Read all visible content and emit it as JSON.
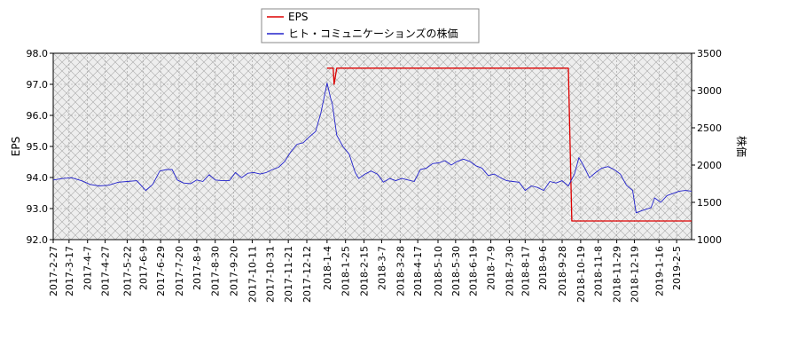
{
  "chart_data": {
    "type": "line",
    "title": "",
    "xlabel": "",
    "ylabel_left": "EPS",
    "ylabel_right": "株価",
    "ylim_left": [
      92.0,
      98.0
    ],
    "ylim_right": [
      1000,
      3500
    ],
    "yticks_left": [
      "92.0",
      "93.0",
      "94.0",
      "95.0",
      "96.0",
      "97.0",
      "98.0"
    ],
    "yticks_right": [
      "1000",
      "1500",
      "2000",
      "2500",
      "3000",
      "3500"
    ],
    "x_start": "2017-02-27",
    "x_end": "2019-02-22",
    "xticks": [
      "2017-2-27",
      "2017-3-17",
      "2017-4-7",
      "2017-4-27",
      "2017-5-22",
      "2017-6-9",
      "2017-6-29",
      "2017-7-20",
      "2017-8-9",
      "2017-8-30",
      "2017-9-20",
      "2017-10-11",
      "2017-10-31",
      "2017-11-21",
      "2017-12-12",
      "2018-1-4",
      "2018-1-25",
      "2018-2-15",
      "2018-3-7",
      "2018-3-28",
      "2018-4-17",
      "2018-5-10",
      "2018-5-30",
      "2018-6-19",
      "2018-7-9",
      "2018-7-30",
      "2018-8-17",
      "2018-9-6",
      "2018-9-28",
      "2018-10-19",
      "2018-11-8",
      "2018-11-29",
      "2018-12-19",
      "2019-1-16",
      "2019-2-5"
    ],
    "grid": true,
    "legend": "top-center",
    "series": [
      {
        "name": "EPS",
        "axis": "left",
        "color": "#dd0000",
        "points": [
          [
            "2018-01-04",
            97.52
          ],
          [
            "2018-01-11",
            97.52
          ],
          [
            "2018-01-12",
            97.0
          ],
          [
            "2018-01-15",
            97.52
          ],
          [
            "2018-10-05",
            97.52
          ],
          [
            "2018-10-09",
            92.6
          ],
          [
            "2019-02-22",
            92.6
          ]
        ]
      },
      {
        "name": "ヒト・コミュニケーションズの株価",
        "axis": "right",
        "color": "#2222cc",
        "points": [
          [
            "2017-02-27",
            1800
          ],
          [
            "2017-03-10",
            1820
          ],
          [
            "2017-03-20",
            1830
          ],
          [
            "2017-03-31",
            1790
          ],
          [
            "2017-04-10",
            1740
          ],
          [
            "2017-04-20",
            1720
          ],
          [
            "2017-05-01",
            1730
          ],
          [
            "2017-05-12",
            1770
          ],
          [
            "2017-05-22",
            1780
          ],
          [
            "2017-06-02",
            1790
          ],
          [
            "2017-06-12",
            1660
          ],
          [
            "2017-06-20",
            1740
          ],
          [
            "2017-06-28",
            1920
          ],
          [
            "2017-07-06",
            1940
          ],
          [
            "2017-07-12",
            1940
          ],
          [
            "2017-07-18",
            1800
          ],
          [
            "2017-07-25",
            1760
          ],
          [
            "2017-08-02",
            1750
          ],
          [
            "2017-08-09",
            1800
          ],
          [
            "2017-08-16",
            1780
          ],
          [
            "2017-08-23",
            1870
          ],
          [
            "2017-08-30",
            1800
          ],
          [
            "2017-09-07",
            1790
          ],
          [
            "2017-09-15",
            1790
          ],
          [
            "2017-09-22",
            1900
          ],
          [
            "2017-09-29",
            1830
          ],
          [
            "2017-10-06",
            1890
          ],
          [
            "2017-10-13",
            1900
          ],
          [
            "2017-10-20",
            1880
          ],
          [
            "2017-10-27",
            1900
          ],
          [
            "2017-11-03",
            1940
          ],
          [
            "2017-11-10",
            1970
          ],
          [
            "2017-11-17",
            2050
          ],
          [
            "2017-11-24",
            2180
          ],
          [
            "2017-12-01",
            2280
          ],
          [
            "2017-12-08",
            2300
          ],
          [
            "2017-12-15",
            2380
          ],
          [
            "2017-12-22",
            2450
          ],
          [
            "2017-12-28",
            2700
          ],
          [
            "2018-01-04",
            3100
          ],
          [
            "2018-01-08",
            2900
          ],
          [
            "2018-01-10",
            2820
          ],
          [
            "2018-01-15",
            2400
          ],
          [
            "2018-01-22",
            2250
          ],
          [
            "2018-01-29",
            2150
          ],
          [
            "2018-02-05",
            1900
          ],
          [
            "2018-02-09",
            1820
          ],
          [
            "2018-02-16",
            1880
          ],
          [
            "2018-02-23",
            1920
          ],
          [
            "2018-03-02",
            1880
          ],
          [
            "2018-03-09",
            1770
          ],
          [
            "2018-03-16",
            1820
          ],
          [
            "2018-03-23",
            1790
          ],
          [
            "2018-03-30",
            1820
          ],
          [
            "2018-04-06",
            1800
          ],
          [
            "2018-04-13",
            1780
          ],
          [
            "2018-04-20",
            1940
          ],
          [
            "2018-04-27",
            1960
          ],
          [
            "2018-05-04",
            2020
          ],
          [
            "2018-05-11",
            2030
          ],
          [
            "2018-05-18",
            2060
          ],
          [
            "2018-05-25",
            2000
          ],
          [
            "2018-06-01",
            2050
          ],
          [
            "2018-06-08",
            2080
          ],
          [
            "2018-06-15",
            2050
          ],
          [
            "2018-06-22",
            1990
          ],
          [
            "2018-06-29",
            1960
          ],
          [
            "2018-07-06",
            1860
          ],
          [
            "2018-07-13",
            1880
          ],
          [
            "2018-07-20",
            1830
          ],
          [
            "2018-07-27",
            1790
          ],
          [
            "2018-08-03",
            1780
          ],
          [
            "2018-08-10",
            1770
          ],
          [
            "2018-08-17",
            1660
          ],
          [
            "2018-08-24",
            1720
          ],
          [
            "2018-08-31",
            1700
          ],
          [
            "2018-09-07",
            1660
          ],
          [
            "2018-09-14",
            1780
          ],
          [
            "2018-09-21",
            1760
          ],
          [
            "2018-09-28",
            1790
          ],
          [
            "2018-10-05",
            1720
          ],
          [
            "2018-10-12",
            1880
          ],
          [
            "2018-10-17",
            2100
          ],
          [
            "2018-10-22",
            2000
          ],
          [
            "2018-10-29",
            1830
          ],
          [
            "2018-11-05",
            1900
          ],
          [
            "2018-11-12",
            1960
          ],
          [
            "2018-11-19",
            1980
          ],
          [
            "2018-11-26",
            1940
          ],
          [
            "2018-12-03",
            1880
          ],
          [
            "2018-12-10",
            1730
          ],
          [
            "2018-12-17",
            1660
          ],
          [
            "2018-12-21",
            1360
          ],
          [
            "2018-12-28",
            1390
          ],
          [
            "2019-01-07",
            1430
          ],
          [
            "2019-01-11",
            1560
          ],
          [
            "2019-01-18",
            1500
          ],
          [
            "2019-01-25",
            1590
          ],
          [
            "2019-02-01",
            1620
          ],
          [
            "2019-02-08",
            1650
          ],
          [
            "2019-02-15",
            1660
          ],
          [
            "2019-02-22",
            1650
          ]
        ]
      }
    ]
  }
}
